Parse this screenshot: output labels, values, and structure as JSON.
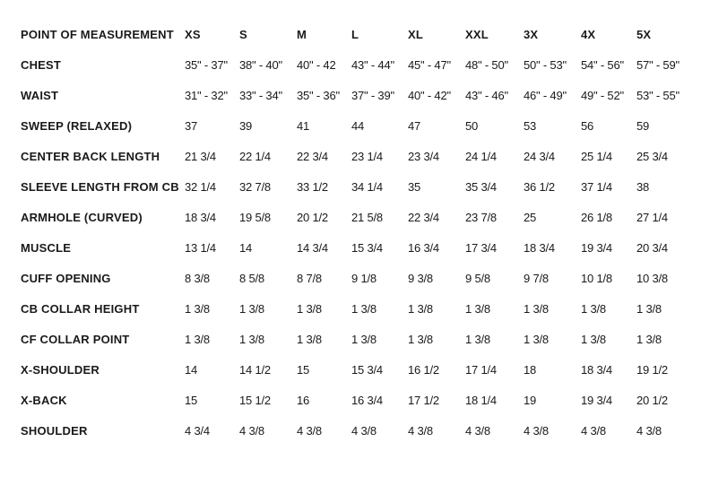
{
  "table": {
    "headers": [
      "POINT OF MEASUREMENT",
      "XS",
      "S",
      "M",
      "L",
      "XL",
      "XXL",
      "3X",
      "4X",
      "5X"
    ],
    "rows": [
      {
        "label": "CHEST",
        "values": [
          "35\" - 37\"",
          "38\" - 40\"",
          "40\" - 42",
          "43\" - 44\"",
          "45\" - 47\"",
          "48\" - 50\"",
          "50\" - 53\"",
          "54\" - 56\"",
          "57\" - 59\""
        ]
      },
      {
        "label": "WAIST",
        "values": [
          "31\" - 32\"",
          "33\" - 34\"",
          "35\" - 36\"",
          "37\" - 39\"",
          "40\" - 42\"",
          "43\" - 46\"",
          "46\" - 49\"",
          "49\" - 52\"",
          "53\" - 55\""
        ]
      },
      {
        "label": "SWEEP (RELAXED)",
        "values": [
          "37",
          "39",
          "41",
          "44",
          "47",
          "50",
          "53",
          "56",
          "59"
        ]
      },
      {
        "label": "CENTER BACK LENGTH",
        "values": [
          "21 3/4",
          "22 1/4",
          "22 3/4",
          "23 1/4",
          "23 3/4",
          "24 1/4",
          "24 3/4",
          "25 1/4",
          "25 3/4"
        ]
      },
      {
        "label": "SLEEVE LENGTH FROM CB",
        "values": [
          "32 1/4",
          "32 7/8",
          "33 1/2",
          "34 1/4",
          "35",
          "35 3/4",
          "36 1/2",
          "37 1/4",
          "38"
        ]
      },
      {
        "label": "ARMHOLE (CURVED)",
        "values": [
          "18 3/4",
          "19 5/8",
          "20 1/2",
          "21 5/8",
          "22 3/4",
          "23 7/8",
          "25",
          "26 1/8",
          "27 1/4"
        ]
      },
      {
        "label": "MUSCLE",
        "values": [
          "13 1/4",
          "14",
          "14 3/4",
          "15 3/4",
          "16 3/4",
          "17 3/4",
          "18 3/4",
          "19 3/4",
          "20 3/4"
        ]
      },
      {
        "label": "CUFF OPENING",
        "values": [
          "8 3/8",
          "8 5/8",
          "8 7/8",
          "9 1/8",
          "9 3/8",
          "9 5/8",
          "9 7/8",
          "10 1/8",
          "10 3/8"
        ]
      },
      {
        "label": "CB COLLAR HEIGHT",
        "values": [
          "1 3/8",
          "1 3/8",
          "1 3/8",
          "1 3/8",
          "1 3/8",
          "1 3/8",
          "1 3/8",
          "1 3/8",
          "1 3/8"
        ]
      },
      {
        "label": "CF COLLAR POINT",
        "values": [
          "1 3/8",
          "1 3/8",
          "1 3/8",
          "1 3/8",
          "1 3/8",
          "1 3/8",
          "1 3/8",
          "1 3/8",
          "1 3/8"
        ]
      },
      {
        "label": "X-SHOULDER",
        "values": [
          "14",
          "14 1/2",
          "15",
          "15 3/4",
          "16 1/2",
          "17 1/4",
          "18",
          "18 3/4",
          "19 1/2"
        ]
      },
      {
        "label": "X-BACK",
        "values": [
          "15",
          "15 1/2",
          "16",
          "16 3/4",
          "17 1/2",
          "18 1/4",
          "19",
          "19 3/4",
          "20 1/2"
        ]
      },
      {
        "label": "SHOULDER",
        "values": [
          "4 3/4",
          "4 3/8",
          "4 3/8",
          "4 3/8",
          "4 3/8",
          "4 3/8",
          "4 3/8",
          "4 3/8",
          "4 3/8"
        ]
      }
    ]
  },
  "colors": {
    "text": "#1a1a1a",
    "background": "#ffffff"
  }
}
